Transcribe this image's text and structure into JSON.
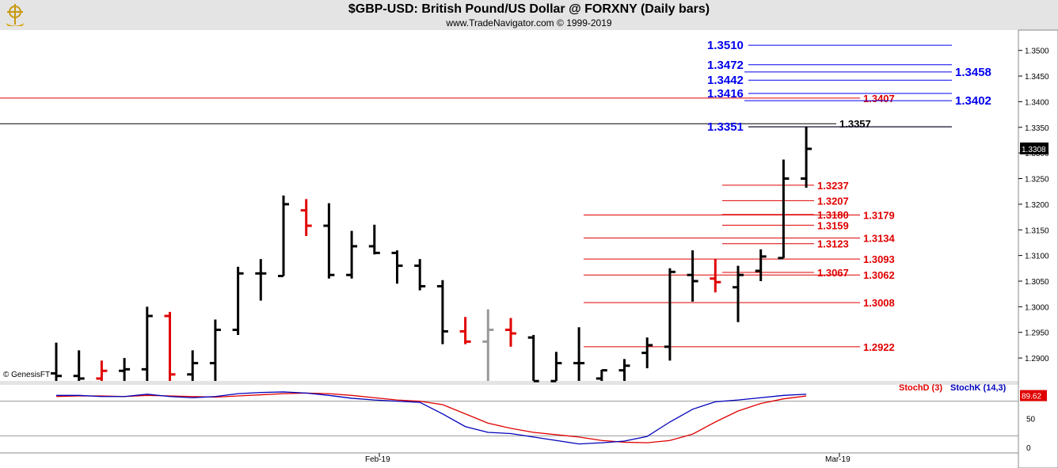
{
  "header": {
    "title": "$GBP-USD:  British Pound/US Dollar @ FORXNY  (Daily bars)",
    "subtitle": "www.TradeNavigator.com © 1999-2019",
    "logo_icon": "ship-wheel-logo-icon"
  },
  "credit": "© GenesisFT",
  "colors": {
    "up_bar": "#000000",
    "down_bar": "#e00000",
    "neutral_bar": "#999999",
    "blue_level": "#0000ee",
    "red_level": "#e00000",
    "stoch_d": "#e00000",
    "stoch_k": "#0000bb",
    "panel_bg": "#e4e4e4"
  },
  "chart_data": [
    {
      "type": "ohlc",
      "title": "$GBP-USD:  British Pound/US Dollar @ FORXNY  (Daily bars)",
      "ylim": [
        1.285,
        1.3535
      ],
      "y_ticks": [
        "1.2850",
        "1.2900",
        "1.2950",
        "1.3000",
        "1.3050",
        "1.3100",
        "1.3150",
        "1.3200",
        "1.3250",
        "1.3300",
        "1.3350",
        "1.3400",
        "1.3450",
        "1.3500"
      ],
      "x_labels": [
        "Feb-19",
        "Mar-19"
      ],
      "last_price": "1.3308",
      "bars": [
        {
          "o": 1.287,
          "h": 1.293,
          "l": 1.285,
          "c": 1.2865,
          "dir": "up"
        },
        {
          "o": 1.2865,
          "h": 1.2915,
          "l": 1.285,
          "c": 1.286,
          "dir": "up"
        },
        {
          "o": 1.286,
          "h": 1.2895,
          "l": 1.285,
          "c": 1.2875,
          "dir": "down"
        },
        {
          "o": 1.2875,
          "h": 1.29,
          "l": 1.285,
          "c": 1.2878,
          "dir": "up"
        },
        {
          "o": 1.2878,
          "h": 1.3,
          "l": 1.285,
          "c": 1.2982,
          "dir": "up"
        },
        {
          "o": 1.2982,
          "h": 1.299,
          "l": 1.285,
          "c": 1.2868,
          "dir": "down"
        },
        {
          "o": 1.2868,
          "h": 1.2915,
          "l": 1.285,
          "c": 1.289,
          "dir": "up"
        },
        {
          "o": 1.289,
          "h": 1.2975,
          "l": 1.285,
          "c": 1.2955,
          "dir": "up"
        },
        {
          "o": 1.2955,
          "h": 1.3078,
          "l": 1.2945,
          "c": 1.3065,
          "dir": "up"
        },
        {
          "o": 1.3065,
          "h": 1.3093,
          "l": 1.3012,
          "c": 1.3065,
          "dir": "up"
        },
        {
          "o": 1.306,
          "h": 1.3217,
          "l": 1.306,
          "c": 1.32,
          "dir": "up"
        },
        {
          "o": 1.3188,
          "h": 1.321,
          "l": 1.3138,
          "c": 1.3158,
          "dir": "down"
        },
        {
          "o": 1.3158,
          "h": 1.3202,
          "l": 1.3055,
          "c": 1.3062,
          "dir": "up"
        },
        {
          "o": 1.3062,
          "h": 1.3148,
          "l": 1.3055,
          "c": 1.3118,
          "dir": "up"
        },
        {
          "o": 1.3118,
          "h": 1.316,
          "l": 1.3102,
          "c": 1.3105,
          "dir": "up"
        },
        {
          "o": 1.3105,
          "h": 1.311,
          "l": 1.3045,
          "c": 1.308,
          "dir": "up"
        },
        {
          "o": 1.308,
          "h": 1.3093,
          "l": 1.3032,
          "c": 1.304,
          "dir": "up"
        },
        {
          "o": 1.304,
          "h": 1.3052,
          "l": 1.2927,
          "c": 1.2952,
          "dir": "up"
        },
        {
          "o": 1.2952,
          "h": 1.298,
          "l": 1.2927,
          "c": 1.2932,
          "dir": "down"
        },
        {
          "o": 1.2932,
          "h": 1.2995,
          "l": 1.285,
          "c": 1.2955,
          "dir": "neutral"
        },
        {
          "o": 1.2955,
          "h": 1.2978,
          "l": 1.2922,
          "c": 1.2948,
          "dir": "down"
        },
        {
          "o": 1.294,
          "h": 1.2945,
          "l": 1.285,
          "c": 1.2855,
          "dir": "up"
        },
        {
          "o": 1.2855,
          "h": 1.2912,
          "l": 1.285,
          "c": 1.289,
          "dir": "up"
        },
        {
          "o": 1.289,
          "h": 1.296,
          "l": 1.285,
          "c": 1.289,
          "dir": "up"
        },
        {
          "o": 1.286,
          "h": 1.2877,
          "l": 1.285,
          "c": 1.2876,
          "dir": "up"
        },
        {
          "o": 1.2876,
          "h": 1.2898,
          "l": 1.285,
          "c": 1.2885,
          "dir": "up"
        },
        {
          "o": 1.291,
          "h": 1.294,
          "l": 1.288,
          "c": 1.2925,
          "dir": "up"
        },
        {
          "o": 1.2922,
          "h": 1.3075,
          "l": 1.2895,
          "c": 1.3068,
          "dir": "up"
        },
        {
          "o": 1.3062,
          "h": 1.311,
          "l": 1.301,
          "c": 1.305,
          "dir": "up"
        },
        {
          "o": 1.3055,
          "h": 1.3093,
          "l": 1.3028,
          "c": 1.3048,
          "dir": "down"
        },
        {
          "o": 1.3038,
          "h": 1.308,
          "l": 1.297,
          "c": 1.3062,
          "dir": "up"
        },
        {
          "o": 1.307,
          "h": 1.3112,
          "l": 1.305,
          "c": 1.3098,
          "dir": "up"
        },
        {
          "o": 1.3095,
          "h": 1.3287,
          "l": 1.3095,
          "c": 1.325,
          "dir": "up"
        },
        {
          "o": 1.325,
          "h": 1.3351,
          "l": 1.3232,
          "c": 1.3308,
          "dir": "up"
        }
      ],
      "levels": [
        {
          "value": 1.351,
          "label": "1.3510",
          "color": "blue",
          "align": "left"
        },
        {
          "value": 1.3472,
          "label": "1.3472",
          "color": "blue",
          "align": "left"
        },
        {
          "value": 1.3458,
          "label": "1.3458",
          "color": "blue",
          "align": "right"
        },
        {
          "value": 1.3442,
          "label": "1.3442",
          "color": "blue",
          "align": "left"
        },
        {
          "value": 1.3416,
          "label": "1.3416",
          "color": "blue",
          "align": "left"
        },
        {
          "value": 1.3407,
          "label": "1.3407",
          "color": "red",
          "align": "right"
        },
        {
          "value": 1.3402,
          "label": "1.3402",
          "color": "blue",
          "align": "right"
        },
        {
          "value": 1.3357,
          "label": "1.3357",
          "color": "black",
          "align": "right"
        },
        {
          "value": 1.3351,
          "label": "1.3351",
          "color": "blue",
          "align": "left"
        },
        {
          "value": 1.3237,
          "label": "1.3237",
          "color": "red",
          "align": "mid"
        },
        {
          "value": 1.3207,
          "label": "1.3207",
          "color": "red",
          "align": "mid"
        },
        {
          "value": 1.318,
          "label": "1.3180",
          "color": "red",
          "align": "mid"
        },
        {
          "value": 1.3179,
          "label": "1.3179",
          "color": "red",
          "align": "right"
        },
        {
          "value": 1.3159,
          "label": "1.3159",
          "color": "red",
          "align": "mid"
        },
        {
          "value": 1.3134,
          "label": "1.3134",
          "color": "red",
          "align": "right"
        },
        {
          "value": 1.3123,
          "label": "1.3123",
          "color": "red",
          "align": "mid"
        },
        {
          "value": 1.3093,
          "label": "1.3093",
          "color": "red",
          "align": "right"
        },
        {
          "value": 1.3067,
          "label": "1.3067",
          "color": "red",
          "align": "mid"
        },
        {
          "value": 1.3062,
          "label": "1.3062",
          "color": "red",
          "align": "right"
        },
        {
          "value": 1.3008,
          "label": "1.3008",
          "color": "red",
          "align": "right"
        },
        {
          "value": 1.2922,
          "label": "1.2922",
          "color": "red",
          "align": "right"
        }
      ]
    },
    {
      "type": "line",
      "title": "",
      "ylim": [
        0,
        100
      ],
      "y_ticks": [
        "0",
        "50"
      ],
      "last_value": "89.62",
      "series": [
        {
          "name": "StochD (3)",
          "color": "red",
          "values": [
            88,
            89,
            89,
            88,
            90,
            89,
            88,
            87,
            89,
            91,
            93,
            94,
            93,
            90,
            86,
            82,
            80,
            74,
            58,
            42,
            33,
            26,
            22,
            18,
            12,
            9,
            8,
            12,
            23,
            44,
            63,
            76,
            84,
            89
          ]
        },
        {
          "name": "StochK (14,3)",
          "color": "blue",
          "values": [
            90,
            90,
            88,
            88,
            92,
            88,
            86,
            88,
            93,
            95,
            96,
            94,
            90,
            85,
            82,
            80,
            78,
            58,
            36,
            26,
            24,
            18,
            12,
            6,
            8,
            11,
            19,
            44,
            66,
            79,
            82,
            86,
            90,
            92
          ]
        }
      ]
    }
  ]
}
